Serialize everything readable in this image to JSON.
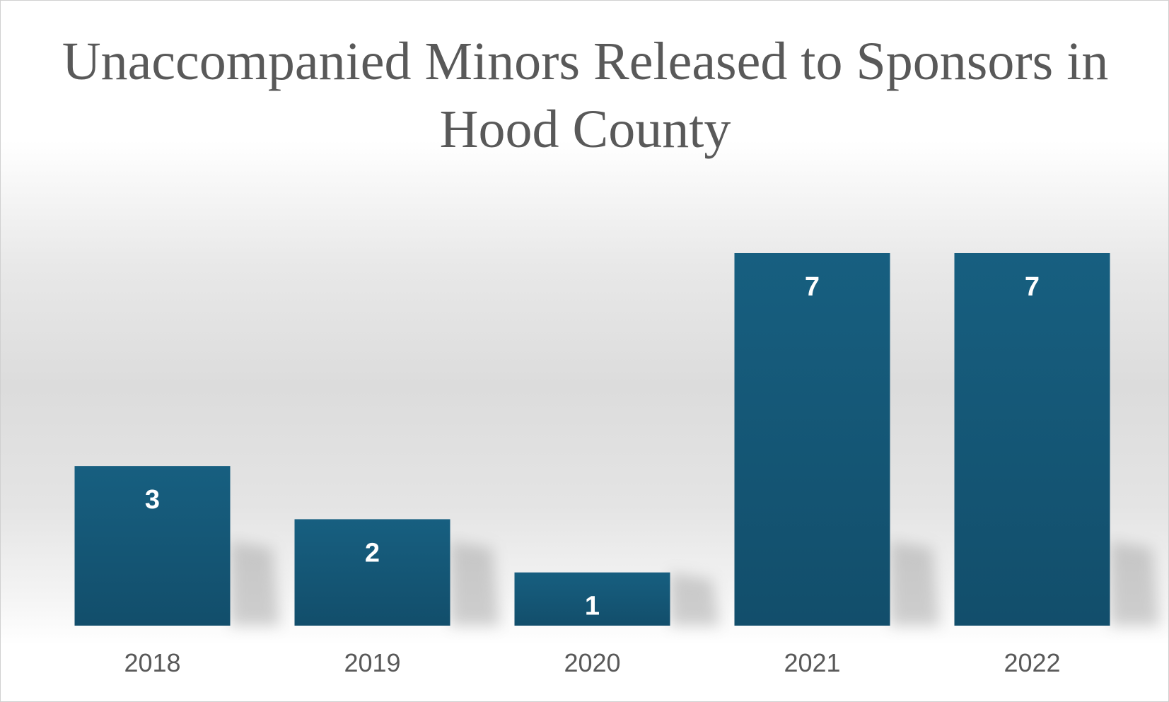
{
  "chart_data": {
    "type": "bar",
    "title": "Unaccompanied Minors Released to Sponsors in Hood County",
    "categories": [
      "2018",
      "2019",
      "2020",
      "2021",
      "2022"
    ],
    "values": [
      3,
      2,
      1,
      7,
      7
    ],
    "xlabel": "",
    "ylabel": "",
    "ylim": [
      0,
      7
    ],
    "grid": false,
    "legend": "none",
    "data_labels": "inside-end",
    "colors": {
      "bar_top": "#175f80",
      "bar_bottom": "#124e6b",
      "label": "#ffffff",
      "text": "#595959"
    }
  }
}
